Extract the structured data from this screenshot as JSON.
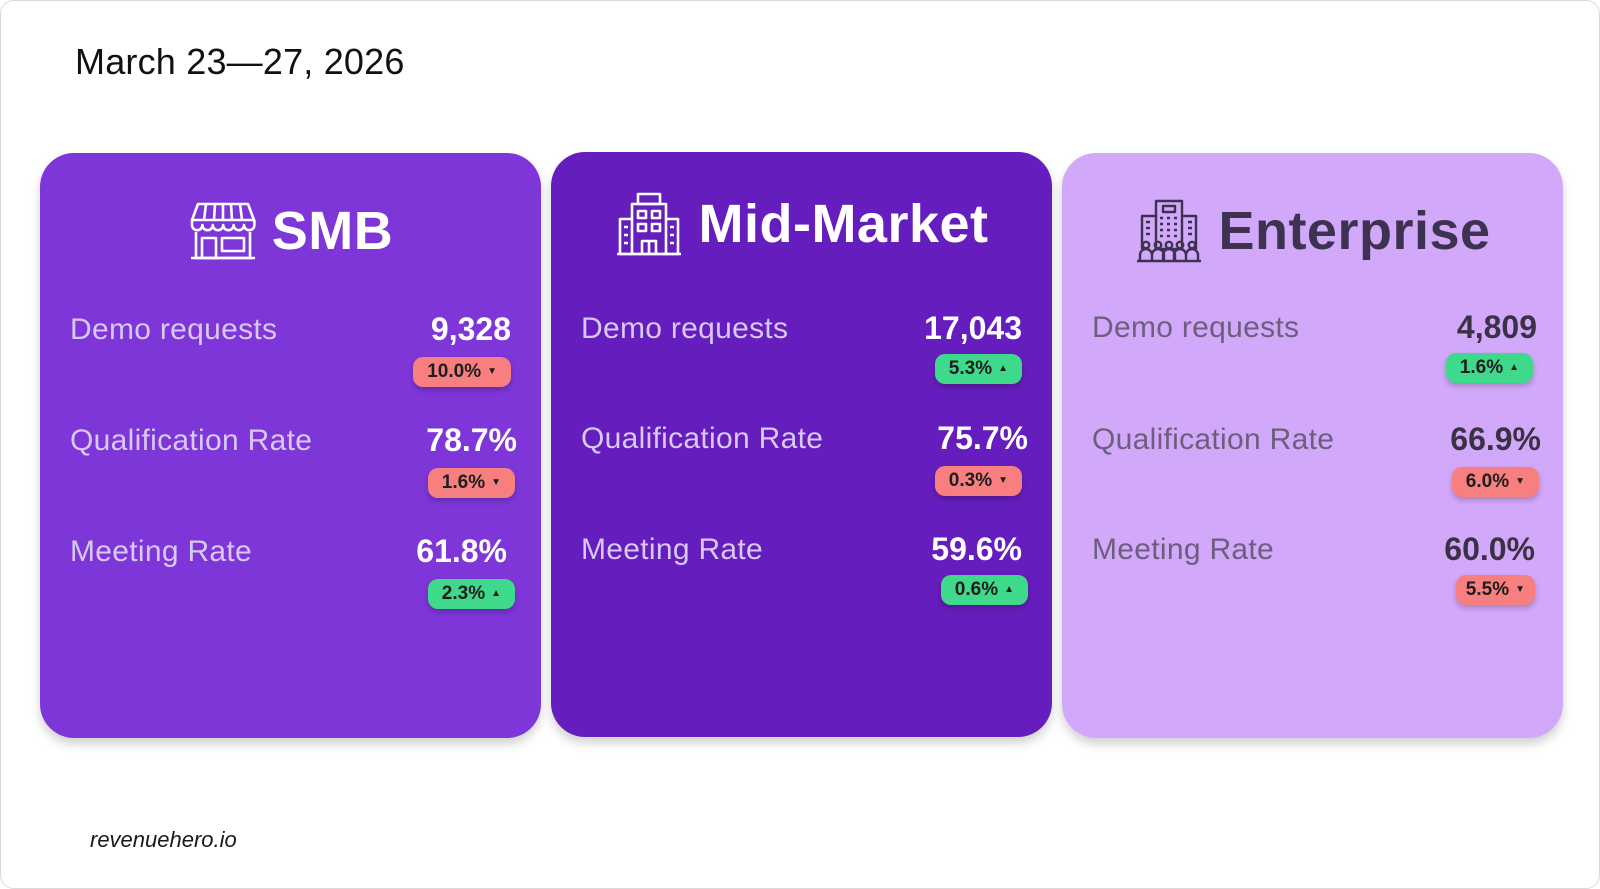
{
  "header": {
    "date_range": "March 23—27, 2026"
  },
  "colors": {
    "smb_card": "#7e36d9",
    "midmarket_card": "#661dbd",
    "enterprise_card": "#d2a8fb",
    "badge_up": "#3ed98a",
    "badge_down": "#f77f7f"
  },
  "cards": [
    {
      "title": "SMB",
      "icon": "storefront-icon",
      "metrics": [
        {
          "label": "Demo requests",
          "value": "9,328",
          "change": "10.0%",
          "direction": "down",
          "arrow": "▼"
        },
        {
          "label": "Qualification Rate",
          "value": "78.7%",
          "change": "1.6%",
          "direction": "down",
          "arrow": "▼"
        },
        {
          "label": "Meeting Rate",
          "value": "61.8%",
          "change": "2.3%",
          "direction": "up",
          "arrow": "▲"
        }
      ]
    },
    {
      "title": "Mid-Market",
      "icon": "office-building-icon",
      "metrics": [
        {
          "label": "Demo requests",
          "value": "17,043",
          "change": "5.3%",
          "direction": "up",
          "arrow": "▲"
        },
        {
          "label": "Qualification Rate",
          "value": "75.7%",
          "change": "0.3%",
          "direction": "down",
          "arrow": "▼"
        },
        {
          "label": "Meeting Rate",
          "value": "59.6%",
          "change": "0.6%",
          "direction": "up",
          "arrow": "▲"
        }
      ]
    },
    {
      "title": "Enterprise",
      "icon": "corporate-building-icon",
      "metrics": [
        {
          "label": "Demo requests",
          "value": "4,809",
          "change": "1.6%",
          "direction": "up",
          "arrow": "▲"
        },
        {
          "label": "Qualification Rate",
          "value": "66.9%",
          "change": "6.0%",
          "direction": "down",
          "arrow": "▼"
        },
        {
          "label": "Meeting Rate",
          "value": "60.0%",
          "change": "5.5%",
          "direction": "down",
          "arrow": "▼"
        }
      ]
    }
  ],
  "footer": {
    "brand": "revenuehero.io"
  }
}
